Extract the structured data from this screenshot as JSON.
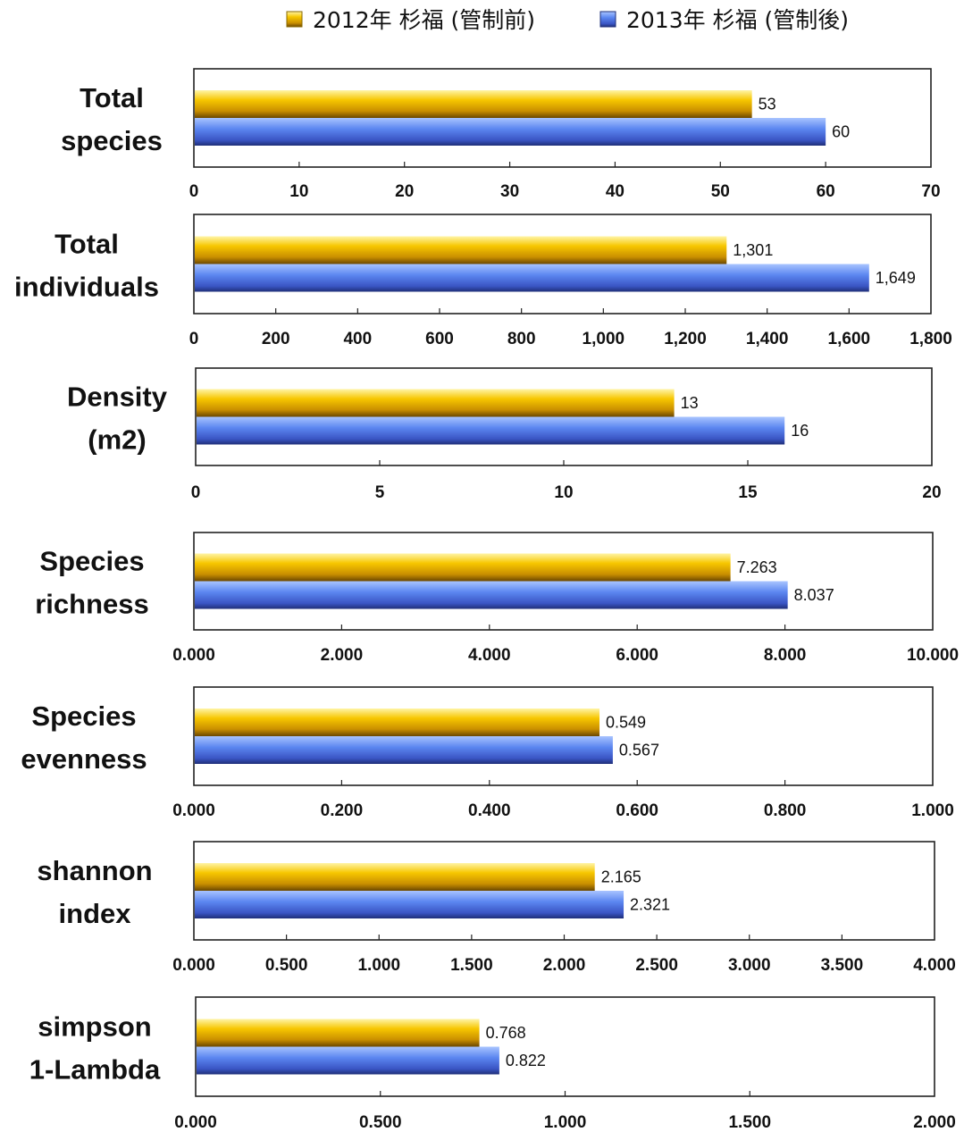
{
  "legend": [
    {
      "label": "2012年 杉福 (管制前)",
      "color": "#f5b800"
    },
    {
      "label": "2013年 杉福 (管制後)",
      "color": "#4d79e8"
    }
  ],
  "chart_data": [
    {
      "type": "bar",
      "orientation": "horizontal",
      "label_lines": [
        "Total",
        "species"
      ],
      "values": [
        53,
        60
      ],
      "value_labels": [
        "53",
        "60"
      ],
      "xlim": [
        0,
        70
      ],
      "ticks": [
        0,
        10,
        20,
        30,
        40,
        50,
        60,
        70
      ],
      "tick_labels": [
        "0",
        "10",
        "20",
        "30",
        "40",
        "50",
        "60",
        "70"
      ]
    },
    {
      "type": "bar",
      "orientation": "horizontal",
      "label_lines": [
        "Total",
        "individuals"
      ],
      "values": [
        1301,
        1649
      ],
      "value_labels": [
        "1,301",
        "1,649"
      ],
      "xlim": [
        0,
        1800
      ],
      "ticks": [
        0,
        200,
        400,
        600,
        800,
        1000,
        1200,
        1400,
        1600,
        1800
      ],
      "tick_labels": [
        "0",
        "200",
        "400",
        "600",
        "800",
        "1,000",
        "1,200",
        "1,400",
        "1,600",
        "1,800"
      ]
    },
    {
      "type": "bar",
      "orientation": "horizontal",
      "label_lines": [
        "Density",
        "(m2)"
      ],
      "values": [
        13,
        16
      ],
      "value_labels": [
        "13",
        "16"
      ],
      "xlim": [
        0,
        20
      ],
      "ticks": [
        0,
        5,
        10,
        15,
        20
      ],
      "tick_labels": [
        "0",
        "5",
        "10",
        "15",
        "20"
      ]
    },
    {
      "type": "bar",
      "orientation": "horizontal",
      "label_lines": [
        "Species",
        "richness"
      ],
      "values": [
        7.263,
        8.037
      ],
      "value_labels": [
        "7.263",
        "8.037"
      ],
      "xlim": [
        0,
        10
      ],
      "ticks": [
        0,
        2,
        4,
        6,
        8,
        10
      ],
      "tick_labels": [
        "0.000",
        "2.000",
        "4.000",
        "6.000",
        "8.000",
        "10.000"
      ]
    },
    {
      "type": "bar",
      "orientation": "horizontal",
      "label_lines": [
        "Species",
        "evenness"
      ],
      "values": [
        0.549,
        0.567
      ],
      "value_labels": [
        "0.549",
        "0.567"
      ],
      "xlim": [
        0,
        1
      ],
      "ticks": [
        0,
        0.2,
        0.4,
        0.6,
        0.8,
        1.0
      ],
      "tick_labels": [
        "0.000",
        "0.200",
        "0.400",
        "0.600",
        "0.800",
        "1.000"
      ]
    },
    {
      "type": "bar",
      "orientation": "horizontal",
      "label_lines": [
        "shannon",
        "index"
      ],
      "values": [
        2.165,
        2.321
      ],
      "value_labels": [
        "2.165",
        "2.321"
      ],
      "xlim": [
        0,
        4
      ],
      "ticks": [
        0,
        0.5,
        1.0,
        1.5,
        2.0,
        2.5,
        3.0,
        3.5,
        4.0
      ],
      "tick_labels": [
        "0.000",
        "0.500",
        "1.000",
        "1.500",
        "2.000",
        "2.500",
        "3.000",
        "3.500",
        "4.000"
      ]
    },
    {
      "type": "bar",
      "orientation": "horizontal",
      "label_lines": [
        "simpson",
        "1-Lambda"
      ],
      "values": [
        0.768,
        0.822
      ],
      "value_labels": [
        "0.768",
        "0.822"
      ],
      "xlim": [
        0,
        2
      ],
      "ticks": [
        0,
        0.5,
        1.0,
        1.5,
        2.0
      ],
      "tick_labels": [
        "0.000",
        "0.500",
        "1.000",
        "1.500",
        "2.000"
      ]
    }
  ]
}
